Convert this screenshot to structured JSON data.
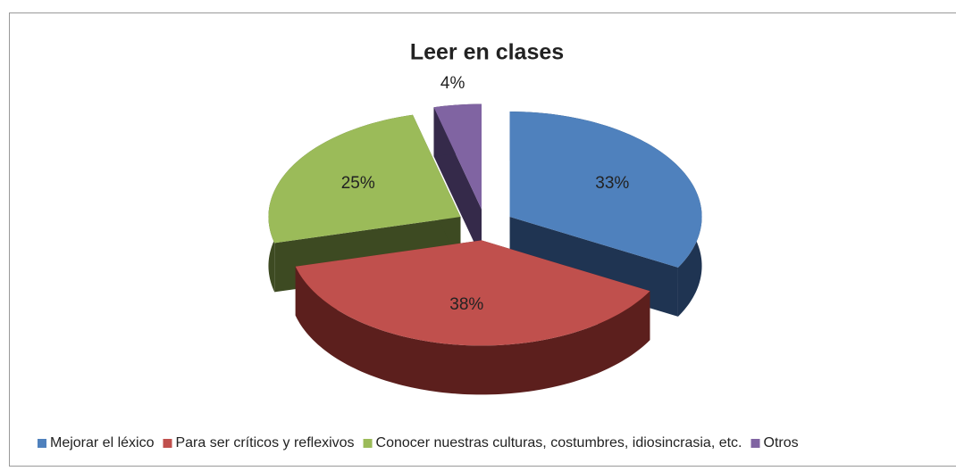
{
  "chart_data": {
    "type": "pie",
    "title": "Leer en clases",
    "categories": [
      "Mejorar el léxico",
      "Para ser críticos y reflexivos",
      "Conocer nuestras culturas, costumbres, idiosincrasia, etc.",
      "Otros"
    ],
    "values": [
      33,
      38,
      25,
      4
    ],
    "value_labels": [
      "33%",
      "38%",
      "25%",
      "4%"
    ],
    "colors": [
      "#4f81bd",
      "#c0504d",
      "#9bbb59",
      "#8064a2"
    ],
    "side_colors": [
      "#1f3452",
      "#5c1f1d",
      "#3d4a22",
      "#352a4a"
    ]
  }
}
